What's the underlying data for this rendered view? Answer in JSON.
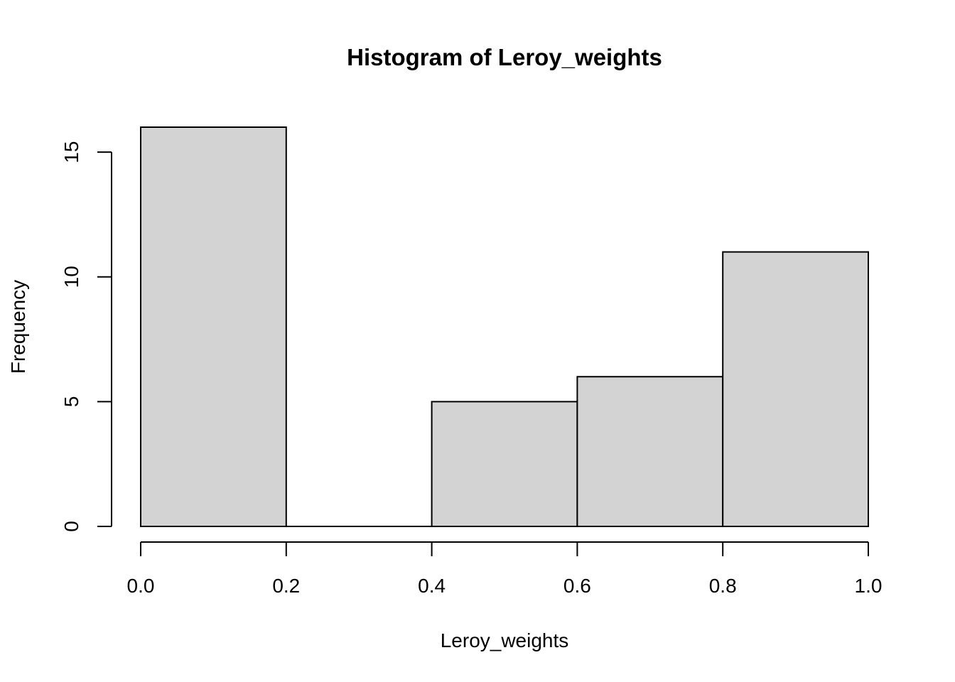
{
  "chart_data": {
    "type": "bar",
    "title": "Histogram of Leroy_weights",
    "xlabel": "Leroy_weights",
    "ylabel": "Frequency",
    "bins": [
      {
        "start": 0.0,
        "end": 0.2,
        "count": 16
      },
      {
        "start": 0.2,
        "end": 0.4,
        "count": 0
      },
      {
        "start": 0.4,
        "end": 0.6,
        "count": 5
      },
      {
        "start": 0.6,
        "end": 0.8,
        "count": 6
      },
      {
        "start": 0.8,
        "end": 1.0,
        "count": 11
      }
    ],
    "xlim": [
      0,
      1
    ],
    "ylim": [
      0,
      16
    ],
    "x_ticks": [
      "0.0",
      "0.2",
      "0.4",
      "0.6",
      "0.8",
      "1.0"
    ],
    "y_ticks": [
      "0",
      "5",
      "10",
      "15"
    ],
    "bar_color": "#d3d3d3",
    "grid": false
  }
}
